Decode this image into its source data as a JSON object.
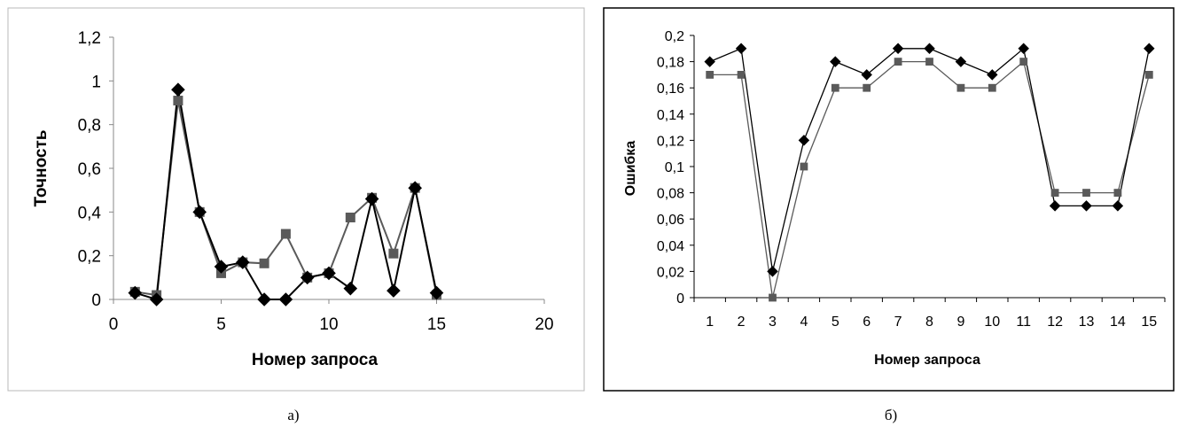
{
  "chart_data": [
    {
      "type": "scatter",
      "caption": "а)",
      "xlabel": "Номер запроса",
      "ylabel": "Точность",
      "xlim": [
        0,
        20
      ],
      "ylim": [
        0,
        1.2
      ],
      "x_ticks": [
        0,
        5,
        10,
        15,
        20
      ],
      "x_tick_labels": [
        "0",
        "5",
        "10",
        "15",
        "20"
      ],
      "y_ticks": [
        0,
        0.2,
        0.4,
        0.6,
        0.8,
        1,
        1.2
      ],
      "y_tick_labels": [
        "0",
        "0,2",
        "0,4",
        "0,6",
        "0,8",
        "1",
        "1,2"
      ],
      "grid": false,
      "legend": "none",
      "x": [
        1,
        2,
        3,
        4,
        5,
        6,
        7,
        8,
        9,
        10,
        11,
        12,
        13,
        14,
        15
      ],
      "series": [
        {
          "marker": "diamond",
          "color": "#000000",
          "values": [
            0.03,
            0.0,
            0.96,
            0.4,
            0.15,
            0.17,
            0.0,
            0.0,
            0.1,
            0.12,
            0.05,
            0.46,
            0.04,
            0.51,
            0.03
          ]
        },
        {
          "marker": "square",
          "color": "#5a5a5a",
          "values": [
            0.035,
            0.02,
            0.91,
            0.4,
            0.12,
            0.17,
            0.165,
            0.3,
            0.1,
            0.12,
            0.375,
            0.465,
            0.21,
            0.51,
            0.02
          ]
        }
      ]
    },
    {
      "type": "line",
      "caption": "б)",
      "xlabel": "Номер запроса",
      "ylabel": "Ошибка",
      "ylim": [
        0,
        0.2
      ],
      "categories": [
        "1",
        "2",
        "3",
        "4",
        "5",
        "6",
        "7",
        "8",
        "9",
        "10",
        "11",
        "12",
        "13",
        "14",
        "15"
      ],
      "y_ticks": [
        0,
        0.02,
        0.04,
        0.06,
        0.08,
        0.1,
        0.12,
        0.14,
        0.16,
        0.18,
        0.2
      ],
      "y_tick_labels": [
        "0",
        "0,02",
        "0,04",
        "0,06",
        "0,08",
        "0,1",
        "0,12",
        "0,14",
        "0,16",
        "0,18",
        "0,2"
      ],
      "grid": false,
      "legend": "none",
      "series": [
        {
          "marker": "diamond",
          "color": "#000000",
          "values": [
            0.18,
            0.19,
            0.02,
            0.12,
            0.18,
            0.17,
            0.19,
            0.19,
            0.18,
            0.17,
            0.19,
            0.07,
            0.07,
            0.07,
            0.19
          ]
        },
        {
          "marker": "square",
          "color": "#5a5a5a",
          "values": [
            0.17,
            0.17,
            0.0,
            0.1,
            0.16,
            0.16,
            0.18,
            0.18,
            0.16,
            0.16,
            0.18,
            0.08,
            0.08,
            0.08,
            0.17
          ]
        }
      ]
    }
  ]
}
